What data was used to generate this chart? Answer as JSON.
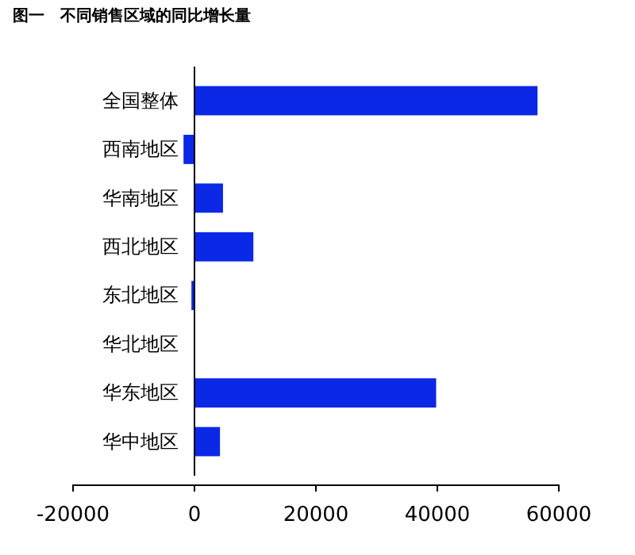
{
  "chart_data": {
    "type": "bar",
    "orientation": "horizontal",
    "title": "图一　不同销售区域的同比增长量",
    "categories": [
      "全国整体",
      "西南地区",
      "华南地区",
      "西北地区",
      "东北地区",
      "华北地区",
      "华东地区",
      "华中地区"
    ],
    "values": [
      56500,
      -1800,
      4700,
      9700,
      -500,
      0,
      39800,
      4200
    ],
    "color": "#0a28e6",
    "xlim": [
      -20000,
      60000
    ],
    "xticks": [
      -20000,
      0,
      20000,
      40000,
      60000
    ],
    "grid": false
  }
}
